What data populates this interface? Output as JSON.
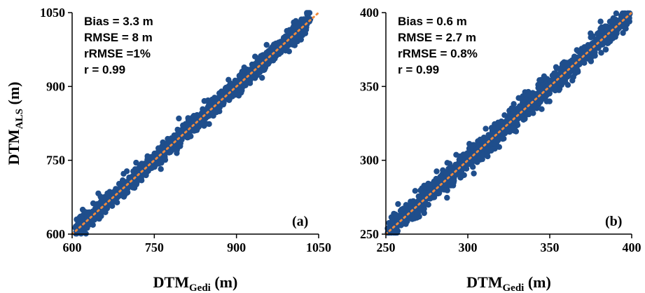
{
  "chart_data": [
    {
      "type": "scatter",
      "panel_label": "(a)",
      "xlabel": {
        "main": "DTM",
        "sub": "Gedi",
        "unit": "(m)"
      },
      "ylabel": {
        "main": "DTM",
        "sub": "ALS",
        "unit": "(m)"
      },
      "xlim": [
        600,
        1050
      ],
      "ylim": [
        600,
        1050
      ],
      "xticks": [
        "600",
        "750",
        "900",
        "1050"
      ],
      "yticks": [
        "600",
        "750",
        "900",
        "1050"
      ],
      "stats": [
        "Bias = 3.3 m",
        "RMSE = 8 m",
        "rRMSE =1%",
        "r = 0.99"
      ],
      "point_color": "#1f4e8c",
      "trend_color": "#f08a3c",
      "bias": 3.3,
      "rmse": 8,
      "r": 0.99,
      "trendline": [
        [
          600,
          600
        ],
        [
          1050,
          1050
        ]
      ],
      "points_envelope": {
        "x_range": [
          605,
          1035
        ],
        "spread_m": 12
      },
      "legend": "none",
      "grid": false
    },
    {
      "type": "scatter",
      "panel_label": "(b)",
      "xlabel": {
        "main": "DTM",
        "sub": "Gedi",
        "unit": "(m)"
      },
      "ylabel": {
        "main": "",
        "sub": "",
        "unit": ""
      },
      "xlim": [
        250,
        400
      ],
      "ylim": [
        250,
        400
      ],
      "xticks": [
        "250",
        "300",
        "350",
        "400"
      ],
      "yticks": [
        "250",
        "300",
        "350",
        "400"
      ],
      "stats": [
        "Bias = 0.6 m",
        "RMSE = 2.7 m",
        "rRMSE = 0.8%",
        "r = 0.99"
      ],
      "point_color": "#1f4e8c",
      "trend_color": "#f08a3c",
      "bias": 0.6,
      "rmse": 2.7,
      "r": 0.99,
      "trendline": [
        [
          250,
          250
        ],
        [
          400,
          400
        ]
      ],
      "points_envelope": {
        "x_range": [
          251,
          399
        ],
        "spread_m": 5
      },
      "legend": "none",
      "grid": false
    }
  ]
}
